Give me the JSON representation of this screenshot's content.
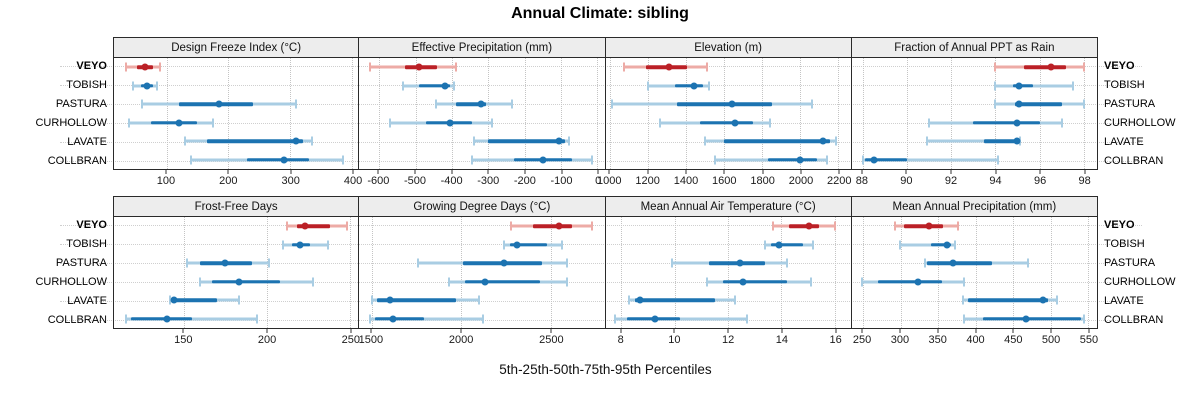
{
  "title": "Annual Climate: sibling",
  "xlabel": "5th-25th-50th-75th-95th Percentiles",
  "sites": [
    "VEYO",
    "TOBISH",
    "PASTURA",
    "CURHOLLOW",
    "LAVATE",
    "COLLBRAN"
  ],
  "highlight_site": "VEYO",
  "colors": {
    "series": "#1c73b1",
    "series_light": "#a9cde3",
    "highlight": "#bb2026",
    "highlight_light": "#edaba6",
    "grid": "#cfcfcf",
    "strip_bg": "#ededed",
    "border": "#2a2a2a"
  },
  "chart_data": {
    "type": "pointrange-panels",
    "title": "Annual Climate: sibling",
    "xlabel": "5th-25th-50th-75th-95th Percentiles",
    "percentiles": [
      5,
      25,
      50,
      75,
      95
    ],
    "sites": [
      "VEYO",
      "TOBISH",
      "PASTURA",
      "CURHOLLOW",
      "LAVATE",
      "COLLBRAN"
    ],
    "rows": [
      {
        "panels": [
          {
            "title": "Design Freeze Index (°C)",
            "xlim": [
              15,
              410
            ],
            "ticks": [
              100,
              200,
              300,
              400
            ],
            "values": [
              [
                35,
                52,
                65,
                78,
                90
              ],
              [
                45,
                58,
                68,
                78,
                85
              ],
              [
                60,
                120,
                185,
                240,
                310
              ],
              [
                40,
                75,
                120,
                150,
                175
              ],
              [
                130,
                165,
                310,
                320,
                335
              ],
              [
                140,
                230,
                290,
                330,
                385
              ]
            ]
          },
          {
            "title": "Effective Precipitation (mm)",
            "xlim": [
              -655,
              20
            ],
            "ticks": [
              -600,
              -500,
              -400,
              -300,
              -200,
              -100,
              0
            ],
            "values": [
              [
                -625,
                -530,
                -490,
                -440,
                -390
              ],
              [
                -535,
                -490,
                -420,
                -405,
                -395
              ],
              [
                -445,
                -390,
                -320,
                -305,
                -235
              ],
              [
                -570,
                -470,
                -405,
                -345,
                -290
              ],
              [
                -340,
                -300,
                -105,
                -88,
                -78
              ],
              [
                -345,
                -230,
                -150,
                -70,
                -15
              ]
            ]
          },
          {
            "title": "Elevation (m)",
            "xlim": [
              975,
              2265
            ],
            "ticks": [
              1000,
              1200,
              1400,
              1600,
              1800,
              2000,
              2200
            ],
            "values": [
              [
                1070,
                1190,
                1310,
                1405,
                1510
              ],
              [
                1200,
                1340,
                1440,
                1490,
                1520
              ],
              [
                1010,
                1350,
                1640,
                1850,
                2060
              ],
              [
                1260,
                1470,
                1655,
                1750,
                1840
              ],
              [
                1500,
                1600,
                2120,
                2155,
                2190
              ],
              [
                1550,
                1830,
                2000,
                2090,
                2140
              ]
            ]
          },
          {
            "title": "Fraction of Annual PPT as Rain",
            "xlim": [
              87.5,
              98.6
            ],
            "ticks": [
              88,
              90,
              92,
              94,
              96,
              98
            ],
            "values": [
              [
                94.0,
                95.3,
                96.5,
                97.2,
                98.0
              ],
              [
                94.0,
                94.8,
                95.05,
                95.7,
                97.5
              ],
              [
                94.0,
                94.9,
                95.05,
                97.0,
                98.0
              ],
              [
                91.0,
                93.0,
                95.0,
                96.0,
                97.0
              ],
              [
                90.9,
                93.5,
                95.0,
                95.0,
                95.1
              ],
              [
                88.0,
                88.1,
                88.5,
                90.0,
                94.1
              ]
            ]
          }
        ]
      },
      {
        "panels": [
          {
            "title": "Frost-Free Days",
            "xlim": [
              108,
              255
            ],
            "ticks": [
              150,
              200,
              250
            ],
            "values": [
              [
                212,
                218,
                223,
                238,
                248
              ],
              [
                210,
                215,
                220,
                226,
                237
              ],
              [
                152,
                160,
                175,
                191,
                201
              ],
              [
                160,
                167,
                183,
                208,
                228
              ],
              [
                142,
                143,
                144,
                170,
                183
              ],
              [
                115,
                118,
                140,
                155,
                194
              ]
            ]
          },
          {
            "title": "Growing Degree Days (°C)",
            "xlim": [
              1430,
              2800
            ],
            "ticks": [
              1500,
              2000,
              2500
            ],
            "values": [
              [
                2280,
                2400,
                2545,
                2620,
                2730
              ],
              [
                2240,
                2270,
                2310,
                2480,
                2560
              ],
              [
                1760,
                2010,
                2240,
                2450,
                2590
              ],
              [
                1930,
                2020,
                2130,
                2440,
                2590
              ],
              [
                1500,
                1530,
                1600,
                1970,
                2100
              ],
              [
                1490,
                1520,
                1620,
                1790,
                2120
              ]
            ]
          },
          {
            "title": "Mean Annual Air Temperature (°C)",
            "xlim": [
              7.4,
              16.6
            ],
            "ticks": [
              8,
              10,
              12,
              14,
              16
            ],
            "values": [
              [
                13.7,
                14.3,
                15.05,
                15.4,
                16.0
              ],
              [
                13.4,
                13.6,
                13.9,
                14.8,
                15.2
              ],
              [
                9.9,
                11.3,
                12.45,
                13.4,
                14.2
              ],
              [
                11.2,
                11.8,
                12.55,
                14.2,
                15.1
              ],
              [
                8.3,
                8.5,
                8.7,
                11.5,
                12.25
              ],
              [
                7.75,
                8.2,
                9.25,
                10.2,
                12.7
              ]
            ]
          },
          {
            "title": "Mean Annual Precipitation (mm)",
            "xlim": [
              235,
              562
            ],
            "ticks": [
              250,
              300,
              350,
              400,
              450,
              500,
              550
            ],
            "values": [
              [
                292,
                305,
                338,
                357,
                377
              ],
              [
                299,
                340,
                362,
                367,
                372
              ],
              [
                332,
                335,
                370,
                422,
                470
              ],
              [
                248,
                270,
                323,
                355,
                385
              ],
              [
                383,
                390,
                490,
                497,
                508
              ],
              [
                385,
                410,
                467,
                540,
                545
              ]
            ]
          }
        ]
      }
    ]
  }
}
